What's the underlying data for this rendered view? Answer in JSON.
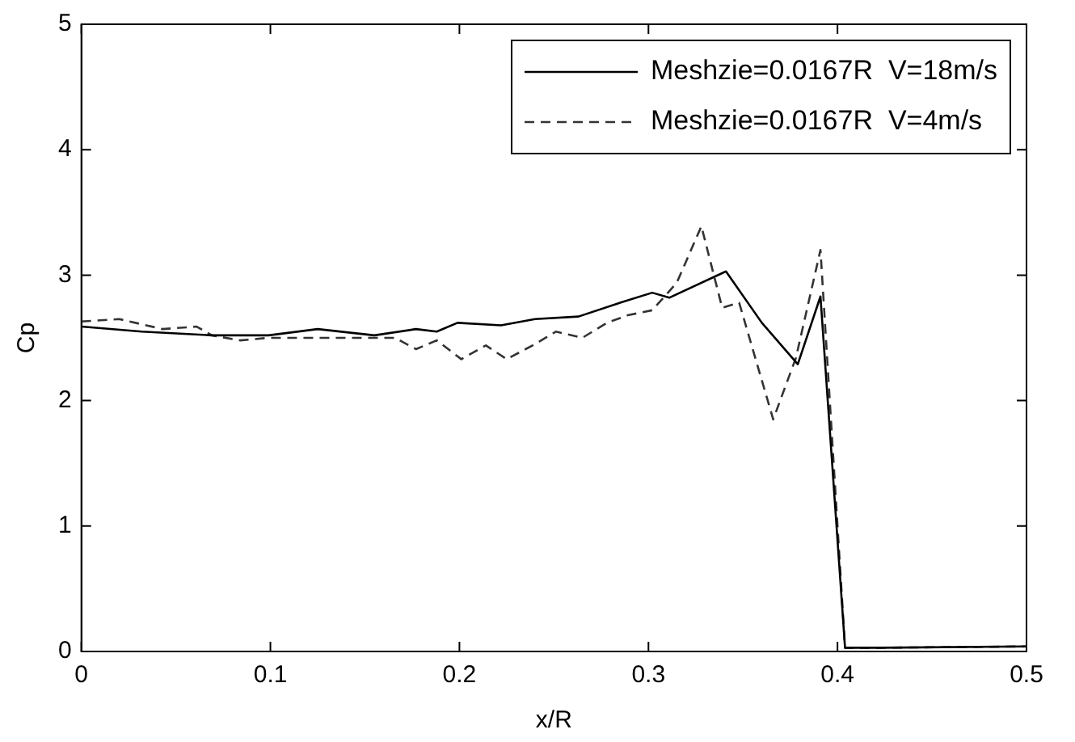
{
  "chart_data": {
    "type": "line",
    "xlabel": "x/R",
    "ylabel": "Cp",
    "xlim": [
      0,
      0.5
    ],
    "xticks": [
      0,
      0.1,
      0.2,
      0.3,
      0.4,
      0.5
    ],
    "ylim": [
      0,
      5
    ],
    "yticks": [
      0,
      1,
      2,
      3,
      4,
      5
    ],
    "grid": false,
    "legend": "top right",
    "marker": "none",
    "series": [
      {
        "name": "Meshzie=0.0167R  V=18m/s",
        "color": "#000000",
        "line_style": "solid",
        "x": [
          0,
          0.032,
          0.069,
          0.099,
          0.125,
          0.155,
          0.177,
          0.188,
          0.199,
          0.222,
          0.24,
          0.263,
          0.285,
          0.302,
          0.311,
          0.341,
          0.36,
          0.379,
          0.391,
          0.404,
          0.423,
          0.5
        ],
        "values": [
          2.59,
          2.55,
          2.52,
          2.52,
          2.57,
          2.52,
          2.57,
          2.55,
          2.62,
          2.6,
          2.65,
          2.67,
          2.78,
          2.86,
          2.82,
          3.03,
          2.62,
          2.29,
          2.83,
          0.03,
          0.03,
          0.04
        ]
      },
      {
        "name": "Meshzie=0.0167R  V=4m/s",
        "color": "#333333",
        "line_style": "dashed",
        "x": [
          0,
          0.02,
          0.043,
          0.061,
          0.069,
          0.084,
          0.099,
          0.125,
          0.155,
          0.166,
          0.177,
          0.188,
          0.201,
          0.214,
          0.225,
          0.24,
          0.251,
          0.265,
          0.278,
          0.289,
          0.302,
          0.315,
          0.328,
          0.339,
          0.348,
          0.366,
          0.378,
          0.391,
          0.404,
          0.423,
          0.5
        ],
        "values": [
          2.63,
          2.65,
          2.57,
          2.59,
          2.52,
          2.48,
          2.5,
          2.5,
          2.5,
          2.5,
          2.41,
          2.48,
          2.33,
          2.44,
          2.33,
          2.45,
          2.55,
          2.5,
          2.62,
          2.68,
          2.72,
          2.94,
          3.39,
          2.74,
          2.78,
          1.85,
          2.34,
          3.2,
          0.03,
          0.03,
          0.04
        ]
      }
    ]
  }
}
